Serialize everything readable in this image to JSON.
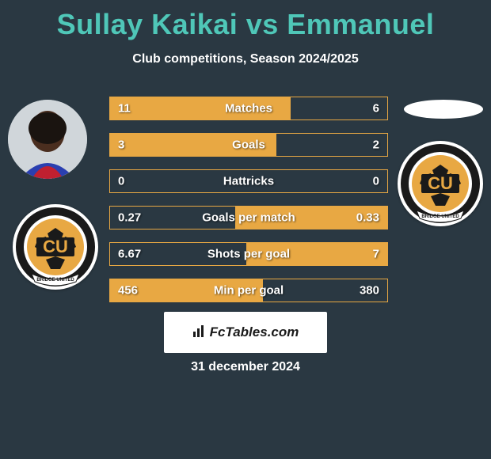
{
  "title": "Sullay Kaikai vs Emmanuel",
  "subtitle": "Club competitions, Season 2024/2025",
  "footer_brand": "FcTables.com",
  "date": "31 december 2024",
  "colors": {
    "accent": "#4fc7b8",
    "orange": "#e8a843",
    "background": "#2a3842",
    "white": "#ffffff"
  },
  "rows": [
    {
      "label": "Matches",
      "left": "11",
      "right": "6",
      "left_pct": 65,
      "right_pct": 35,
      "border": "#e8a843",
      "left_fill": "#e8a843",
      "right_fill": "transparent"
    },
    {
      "label": "Goals",
      "left": "3",
      "right": "2",
      "left_pct": 60,
      "right_pct": 40,
      "border": "#e8a843",
      "left_fill": "#e8a843",
      "right_fill": "transparent"
    },
    {
      "label": "Hattricks",
      "left": "0",
      "right": "0",
      "left_pct": 0,
      "right_pct": 0,
      "border": "#e8a843",
      "left_fill": "transparent",
      "right_fill": "transparent"
    },
    {
      "label": "Goals per match",
      "left": "0.27",
      "right": "0.33",
      "left_pct": 45,
      "right_pct": 55,
      "border": "#e8a843",
      "left_fill": "transparent",
      "right_fill": "#e8a843"
    },
    {
      "label": "Shots per goal",
      "left": "6.67",
      "right": "7",
      "left_pct": 49,
      "right_pct": 51,
      "border": "#e8a843",
      "left_fill": "transparent",
      "right_fill": "#e8a843"
    },
    {
      "label": "Min per goal",
      "left": "456",
      "right": "380",
      "left_pct": 55,
      "right_pct": 45,
      "border": "#e8a843",
      "left_fill": "#e8a843",
      "right_fill": "transparent"
    }
  ],
  "badge": {
    "text": "CU",
    "ring_text": "BRIDGE UNITED",
    "primary": "#e8a843",
    "black": "#1a1a1a",
    "white": "#ffffff"
  }
}
